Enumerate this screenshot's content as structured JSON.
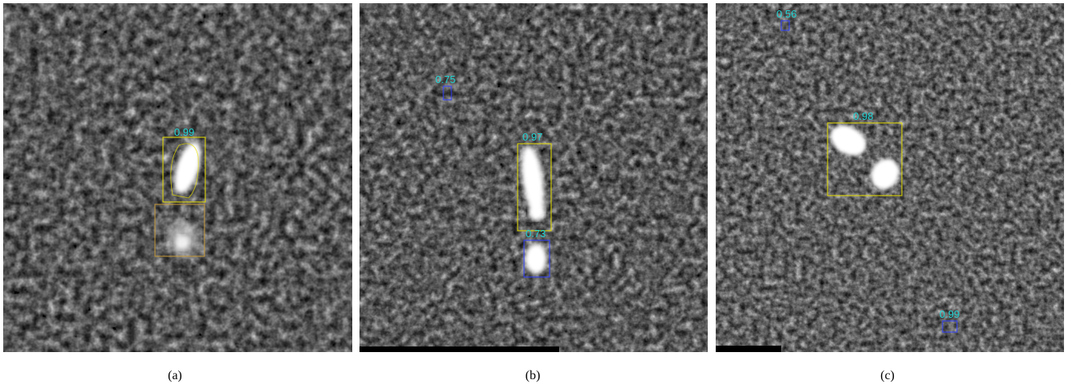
{
  "panels": [
    {
      "caption": "(a)",
      "detections": [
        {
          "score": "0.99",
          "color": "#e8e000",
          "kind": "primary"
        },
        {
          "score": "",
          "color": "#c79a3a",
          "kind": "secondary"
        }
      ]
    },
    {
      "caption": "(b)",
      "detections": [
        {
          "score": "0.75",
          "color": "#3040ff",
          "kind": "small"
        },
        {
          "score": "0.97",
          "color": "#e8e000",
          "kind": "primary"
        },
        {
          "score": "0.73",
          "color": "#3040ff",
          "kind": "secondary"
        }
      ]
    },
    {
      "caption": "(c)",
      "detections": [
        {
          "score": "0.56",
          "color": "#3040ff",
          "kind": "small"
        },
        {
          "score": "0.98",
          "color": "#e8e000",
          "kind": "primary"
        },
        {
          "score": "0.99",
          "color": "#3040ff",
          "kind": "small"
        }
      ]
    }
  ],
  "colors": {
    "score_text": "#22d3d3",
    "background_noise": "#6e6e6e"
  }
}
